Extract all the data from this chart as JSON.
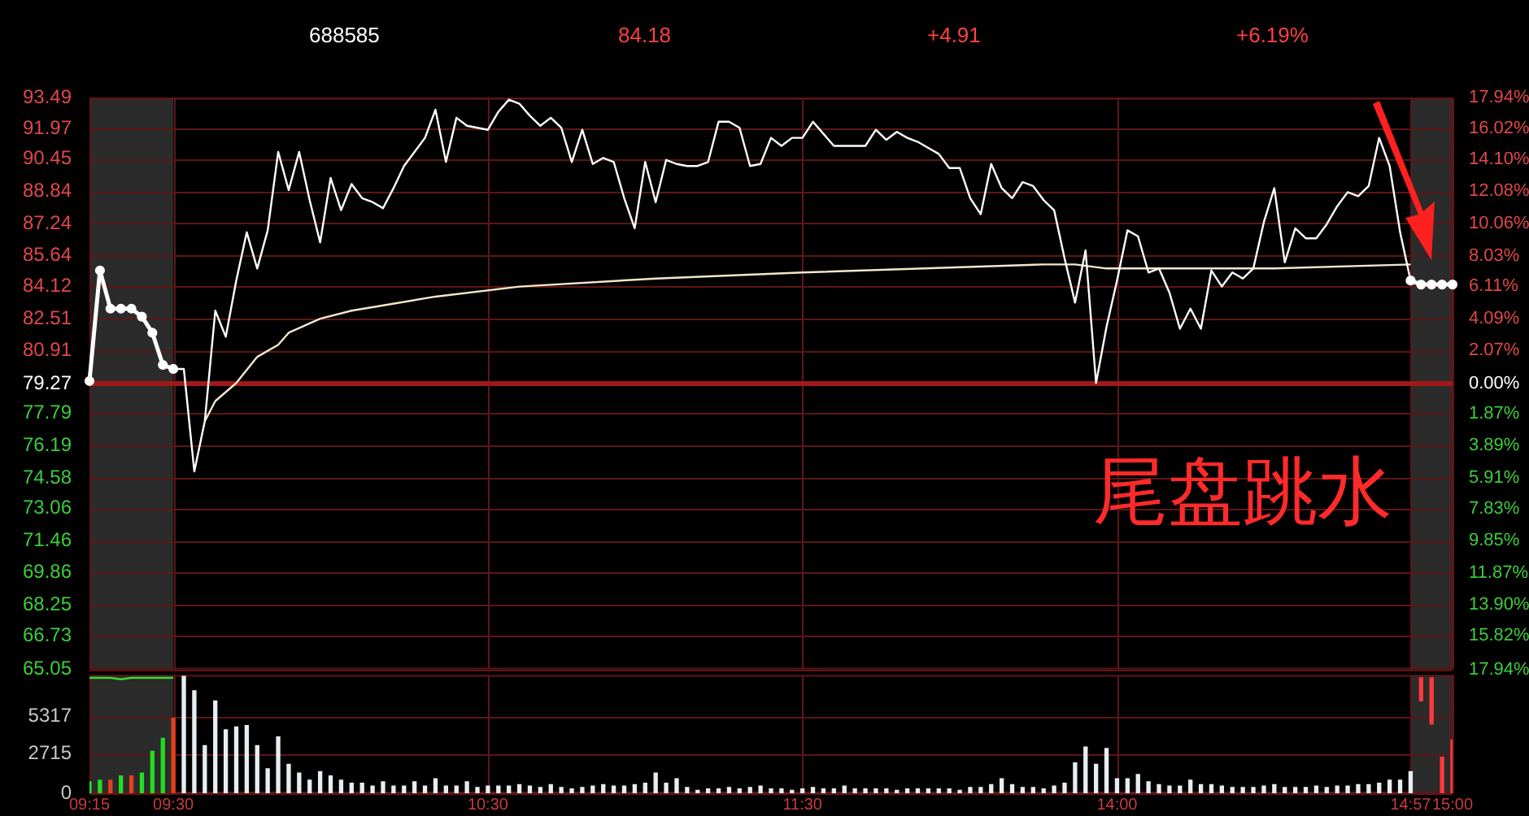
{
  "chart_data": [
    {
      "type": "line",
      "title": "688585",
      "annotations": [
        "84.18",
        "+4.91",
        "+6.19%",
        "尾盘跳水"
      ],
      "categories": [
        "09:15",
        null,
        null,
        null,
        null,
        null,
        null,
        null,
        "09:30",
        null,
        null,
        null,
        null,
        null,
        null,
        null,
        null,
        null,
        null,
        null,
        null,
        null,
        null,
        null,
        null,
        null,
        null,
        null,
        null,
        null,
        null,
        null,
        null,
        null,
        null,
        null,
        null,
        null,
        "10:30",
        null,
        null,
        null,
        null,
        null,
        null,
        null,
        null,
        null,
        null,
        null,
        null,
        null,
        null,
        null,
        null,
        null,
        null,
        null,
        null,
        null,
        null,
        null,
        null,
        null,
        null,
        null,
        null,
        null,
        "11:30",
        null,
        null,
        null,
        null,
        null,
        null,
        null,
        null,
        null,
        null,
        null,
        null,
        null,
        null,
        null,
        null,
        null,
        null,
        null,
        null,
        null,
        null,
        null,
        null,
        null,
        null,
        null,
        null,
        null,
        "14:00",
        null,
        null,
        null,
        null,
        null,
        null,
        null,
        null,
        null,
        null,
        null,
        null,
        null,
        null,
        null,
        null,
        null,
        null,
        null,
        null,
        null,
        null,
        null,
        null,
        null,
        null,
        null,
        "14:57",
        null,
        null,
        null,
        "15:00"
      ],
      "tick_labels": "y",
      "ylim": [
        65.05,
        93.49
      ],
      "yticks": [
        65.05,
        66.73,
        68.25,
        69.86,
        71.46,
        73.06,
        74.58,
        76.19,
        77.79,
        79.27,
        80.91,
        82.51,
        84.12,
        85.64,
        87.24,
        88.84,
        90.45,
        91.97,
        93.49
      ],
      "y2lim": [
        -17.94,
        17.94
      ],
      "y2ticks": [
        {
          "value": -17.94,
          "label": "17.94%"
        },
        {
          "value": -15.82,
          "label": "15.82%"
        },
        {
          "value": -13.9,
          "label": "13.90%"
        },
        {
          "value": -11.87,
          "label": "11.87%"
        },
        {
          "value": -9.85,
          "label": "9.85%"
        },
        {
          "value": -7.83,
          "label": "7.83%"
        },
        {
          "value": -5.91,
          "label": "5.91%"
        },
        {
          "value": -3.89,
          "label": "3.89%"
        },
        {
          "value": -1.87,
          "label": "1.87%"
        },
        {
          "value": 0,
          "label": "0.00%"
        },
        {
          "value": 2.07,
          "label": "2.07%"
        },
        {
          "value": 4.09,
          "label": "4.09%"
        },
        {
          "value": 6.11,
          "label": "6.11%"
        },
        {
          "value": 8.03,
          "label": "8.03%"
        },
        {
          "value": 10.06,
          "label": "10.06%"
        },
        {
          "value": 12.08,
          "label": "12.08%"
        },
        {
          "value": 14.1,
          "label": "14.10%"
        },
        {
          "value": 16.02,
          "label": "16.02%"
        },
        {
          "value": 17.94,
          "label": "17.94%"
        }
      ],
      "grid": true,
      "ref_lines": [
        {
          "axis": "y",
          "value": 79.27,
          "color": "#a01818"
        }
      ],
      "bands": [
        {
          "axis": "x",
          "from": "09:15",
          "to": "09:30",
          "color": "#2b2b2b"
        },
        {
          "axis": "x",
          "from": "14:57",
          "to": "15:00",
          "color": "#2b2b2b"
        }
      ],
      "series": [
        {
          "color": "#ffffff",
          "marker": "circle",
          "values": [
            79.4,
            84.9,
            83.0,
            83.0,
            83.0,
            82.6,
            81.8,
            80.2,
            80.0,
            null,
            null,
            null,
            null,
            null,
            null,
            null,
            null,
            null,
            null,
            null,
            null,
            null,
            null,
            null,
            null,
            null,
            null,
            null,
            null,
            null,
            null,
            null,
            null,
            null,
            null,
            null,
            null,
            null,
            null,
            null,
            null,
            null,
            null,
            null,
            null,
            null,
            null,
            null,
            null,
            null,
            null,
            null,
            null,
            null,
            null,
            null,
            null,
            null,
            null,
            null,
            null,
            null,
            null,
            null,
            null,
            null,
            null,
            null,
            null,
            null,
            null,
            null,
            null,
            null,
            null,
            null,
            null,
            null,
            null,
            null,
            null,
            null,
            null,
            null,
            null,
            null,
            null,
            null,
            null,
            null,
            null,
            null,
            null,
            null,
            null,
            null,
            null,
            null,
            null,
            null,
            null,
            null,
            null,
            null,
            null,
            null,
            null,
            null,
            null,
            null,
            null,
            null,
            null,
            null,
            null,
            null,
            null,
            null,
            null,
            null,
            null,
            null,
            null,
            null,
            null,
            null,
            null,
            null,
            null,
            null,
            null
          ]
        },
        {
          "color": "#ffffff",
          "marker": "none",
          "values": [
            null,
            null,
            null,
            null,
            null,
            null,
            null,
            null,
            80.0,
            80.0,
            74.9,
            77.4,
            82.9,
            81.6,
            84.4,
            86.8,
            85.0,
            86.9,
            90.8,
            88.9,
            90.8,
            88.4,
            86.3,
            89.5,
            87.9,
            89.2,
            88.5,
            88.3,
            88.0,
            89.0,
            90.1,
            90.8,
            91.5,
            92.9,
            90.3,
            92.5,
            92.1,
            92.0,
            91.9,
            92.8,
            93.4,
            93.2,
            92.6,
            92.1,
            92.5,
            92.0,
            90.3,
            91.9,
            90.2,
            90.5,
            90.3,
            88.5,
            87.0,
            90.3,
            88.3,
            90.4,
            90.2,
            90.1,
            90.1,
            90.3,
            92.3,
            92.3,
            92.0,
            90.1,
            90.2,
            91.5,
            91.1,
            91.5,
            91.5,
            92.3,
            91.7,
            91.1,
            91.1,
            91.1,
            91.1,
            91.9,
            91.4,
            91.8,
            91.5,
            91.3,
            91.0,
            90.7,
            90.0,
            90.0,
            88.5,
            87.7,
            90.2,
            89.0,
            88.5,
            89.3,
            89.1,
            88.4,
            87.9,
            85.5,
            83.3,
            85.9,
            79.3,
            82.1,
            84.4,
            86.9,
            86.6,
            84.8,
            85.0,
            83.8,
            82.0,
            83.0,
            82.0,
            84.9,
            84.1,
            84.8,
            84.5,
            85.0,
            87.3,
            89.0,
            85.3,
            87.0,
            86.5,
            86.5,
            87.2,
            88.1,
            88.8,
            88.6,
            89.1,
            91.5,
            90.1,
            86.8,
            84.4,
            null,
            null,
            null,
            null
          ]
        },
        {
          "color": "#ffffff",
          "marker": "circle",
          "values": [
            null,
            null,
            null,
            null,
            null,
            null,
            null,
            null,
            null,
            null,
            null,
            null,
            null,
            null,
            null,
            null,
            null,
            null,
            null,
            null,
            null,
            null,
            null,
            null,
            null,
            null,
            null,
            null,
            null,
            null,
            null,
            null,
            null,
            null,
            null,
            null,
            null,
            null,
            null,
            null,
            null,
            null,
            null,
            null,
            null,
            null,
            null,
            null,
            null,
            null,
            null,
            null,
            null,
            null,
            null,
            null,
            null,
            null,
            null,
            null,
            null,
            null,
            null,
            null,
            null,
            null,
            null,
            null,
            null,
            null,
            null,
            null,
            null,
            null,
            null,
            null,
            null,
            null,
            null,
            null,
            null,
            null,
            null,
            null,
            null,
            null,
            null,
            null,
            null,
            null,
            null,
            null,
            null,
            null,
            null,
            null,
            null,
            null,
            null,
            null,
            null,
            null,
            null,
            null,
            null,
            null,
            null,
            null,
            null,
            null,
            null,
            null,
            null,
            null,
            null,
            null,
            null,
            null,
            null,
            null,
            null,
            null,
            null,
            null,
            null,
            null,
            84.4,
            84.2,
            84.2,
            84.2,
            84.2
          ]
        },
        {
          "color": "#f2e8c9",
          "marker": "none",
          "values": [
            null,
            null,
            null,
            null,
            null,
            null,
            null,
            null,
            null,
            null,
            null,
            77.4,
            78.4,
            null,
            79.3,
            null,
            80.6,
            null,
            81.2,
            81.8,
            null,
            null,
            82.5,
            null,
            null,
            82.9,
            null,
            null,
            null,
            null,
            null,
            null,
            null,
            83.6,
            null,
            null,
            null,
            null,
            null,
            null,
            null,
            84.1,
            null,
            null,
            null,
            null,
            null,
            null,
            null,
            null,
            null,
            null,
            null,
            null,
            84.5,
            null,
            null,
            null,
            null,
            null,
            null,
            null,
            null,
            null,
            null,
            null,
            null,
            null,
            84.8,
            null,
            null,
            null,
            null,
            null,
            null,
            null,
            null,
            null,
            null,
            null,
            null,
            null,
            null,
            null,
            null,
            null,
            null,
            null,
            null,
            null,
            null,
            85.2,
            null,
            null,
            85.2,
            null,
            null,
            85.0,
            null,
            null,
            null,
            null,
            null,
            null,
            null,
            null,
            85.0,
            null,
            null,
            null,
            null,
            null,
            null,
            85.0,
            null,
            null,
            null,
            null,
            null,
            null,
            null,
            null,
            null,
            null,
            null,
            null,
            85.2,
            null,
            null,
            null,
            null
          ]
        }
      ]
    },
    {
      "type": "bar",
      "categories": [
        "09:15",
        null,
        null,
        null,
        null,
        null,
        null,
        null,
        "09:30",
        null,
        null,
        null,
        null,
        null,
        null,
        null,
        null,
        null,
        null,
        null,
        null,
        null,
        null,
        null,
        null,
        null,
        null,
        null,
        null,
        null,
        null,
        null,
        null,
        null,
        null,
        null,
        null,
        null,
        "10:30",
        null,
        null,
        null,
        null,
        null,
        null,
        null,
        null,
        null,
        null,
        null,
        null,
        null,
        null,
        null,
        null,
        null,
        null,
        null,
        null,
        null,
        null,
        null,
        null,
        null,
        null,
        null,
        null,
        null,
        "11:30",
        null,
        null,
        null,
        null,
        null,
        null,
        null,
        null,
        null,
        null,
        null,
        null,
        null,
        null,
        null,
        null,
        null,
        null,
        null,
        null,
        null,
        null,
        null,
        null,
        null,
        null,
        null,
        null,
        null,
        "14:00",
        null,
        null,
        null,
        null,
        null,
        null,
        null,
        null,
        null,
        null,
        null,
        null,
        null,
        null,
        null,
        null,
        null,
        null,
        null,
        null,
        null,
        null,
        null,
        null,
        null,
        null,
        null,
        "14:57",
        null,
        null,
        null,
        "15:00"
      ],
      "ylim": [
        0,
        8200
      ],
      "yticks": [
        0,
        2715,
        5317
      ],
      "grid": true,
      "bands": [
        {
          "axis": "x",
          "from": "09:15",
          "to": "09:30",
          "color": "#2b2b2b"
        },
        {
          "axis": "x",
          "from": "14:57",
          "to": "15:00",
          "color": "#2b2b2b"
        }
      ],
      "series": [
        {
          "color": "#22dd22",
          "values": [
            800,
            900,
            null,
            1200,
            null,
            1400,
            2900,
            3800,
            null,
            null,
            null,
            null,
            null,
            null,
            null,
            null,
            null,
            null,
            null,
            null,
            null,
            null,
            null,
            null,
            null,
            null,
            null,
            null,
            null,
            null,
            null,
            null,
            null,
            null,
            null,
            null,
            null,
            null,
            null,
            null,
            null,
            null,
            null,
            null,
            null,
            null,
            null,
            null,
            null,
            null,
            null,
            null,
            null,
            null,
            null,
            null,
            null,
            null,
            null,
            null,
            null,
            null,
            null,
            null,
            null,
            null,
            null,
            null,
            null,
            null,
            null,
            null,
            null,
            null,
            null,
            null,
            null,
            null,
            null,
            null,
            null,
            null,
            null,
            null,
            null,
            null,
            null,
            null,
            null,
            null,
            null,
            null,
            null,
            null,
            null,
            null,
            null,
            null,
            null,
            null,
            null,
            null,
            null,
            null,
            null,
            null,
            null,
            null,
            null,
            null,
            null,
            null,
            null,
            null,
            null,
            null,
            null,
            null,
            null,
            null,
            null,
            null,
            null,
            null,
            null,
            null,
            null,
            null,
            null,
            null,
            null
          ]
        },
        {
          "color": "#e04020",
          "values": [
            null,
            null,
            900,
            null,
            1200,
            null,
            null,
            null,
            5200,
            null,
            null,
            null,
            null,
            null,
            null,
            null,
            null,
            null,
            null,
            null,
            null,
            null,
            null,
            null,
            null,
            null,
            null,
            null,
            null,
            null,
            null,
            null,
            null,
            null,
            null,
            null,
            null,
            null,
            null,
            null,
            null,
            null,
            null,
            null,
            null,
            null,
            null,
            null,
            null,
            null,
            null,
            null,
            null,
            null,
            null,
            null,
            null,
            null,
            null,
            null,
            null,
            null,
            null,
            null,
            null,
            null,
            null,
            null,
            null,
            null,
            null,
            null,
            null,
            null,
            null,
            null,
            null,
            null,
            null,
            null,
            null,
            null,
            null,
            null,
            null,
            null,
            null,
            null,
            null,
            null,
            null,
            null,
            null,
            null,
            null,
            null,
            null,
            null,
            null,
            null,
            null,
            null,
            null,
            null,
            null,
            null,
            null,
            null,
            null,
            null,
            null,
            null,
            null,
            null,
            null,
            null,
            null,
            null,
            null,
            null,
            null,
            null,
            null,
            null,
            null,
            null,
            null,
            null,
            null,
            null,
            null
          ]
        },
        {
          "type": "line",
          "color": "#33dd33",
          "marker": "none",
          "values": [
            8000,
            8000,
            8000,
            7900,
            8000,
            8000,
            8000,
            8000,
            8000,
            null,
            null,
            null,
            null,
            null,
            null,
            null,
            null,
            null,
            null,
            null,
            null,
            null,
            null,
            null,
            null,
            null,
            null,
            null,
            null,
            null,
            null,
            null,
            null,
            null,
            null,
            null,
            null,
            null,
            null,
            null,
            null,
            null,
            null,
            null,
            null,
            null,
            null,
            null,
            null,
            null,
            null,
            null,
            null,
            null,
            null,
            null,
            null,
            null,
            null,
            null,
            null,
            null,
            null,
            null,
            null,
            null,
            null,
            null,
            null,
            null,
            null,
            null,
            null,
            null,
            null,
            null,
            null,
            null,
            null,
            null,
            null,
            null,
            null,
            null,
            null,
            null,
            null,
            null,
            null,
            null,
            null,
            null,
            null,
            null,
            null,
            null,
            null,
            null,
            null,
            null,
            null,
            null,
            null,
            null,
            null,
            null,
            null,
            null,
            null,
            null,
            null,
            null,
            null,
            null,
            null,
            null,
            null,
            null,
            null,
            null,
            null,
            null,
            null,
            null,
            null,
            null,
            null,
            null,
            null,
            null,
            null
          ]
        },
        {
          "color": "#e6eef2",
          "values": [
            null,
            null,
            null,
            null,
            null,
            null,
            null,
            null,
            null,
            8100,
            7100,
            3300,
            6400,
            4400,
            4600,
            4700,
            3300,
            1700,
            3900,
            2000,
            1400,
            900,
            1500,
            1200,
            900,
            700,
            700,
            500,
            800,
            500,
            500,
            800,
            500,
            1000,
            500,
            500,
            800,
            400,
            500,
            500,
            500,
            600,
            500,
            400,
            600,
            400,
            300,
            400,
            500,
            600,
            500,
            500,
            600,
            700,
            1400,
            700,
            1000,
            400,
            200,
            300,
            300,
            400,
            300,
            400,
            500,
            300,
            300,
            200,
            300,
            400,
            300,
            300,
            500,
            300,
            300,
            300,
            300,
            200,
            300,
            300,
            300,
            300,
            300,
            200,
            400,
            400,
            600,
            1000,
            600,
            400,
            400,
            300,
            500,
            700,
            2100,
            3200,
            2000,
            3100,
            1000,
            1000,
            1300,
            800,
            600,
            500,
            500,
            900,
            600,
            600,
            500,
            400,
            400,
            400,
            500,
            600,
            400,
            400,
            400,
            500,
            400,
            500,
            500,
            600,
            600,
            700,
            900,
            900,
            1500,
            null,
            null,
            null,
            null
          ]
        },
        {
          "color": "#ff3a3a",
          "values": [
            null,
            null,
            null,
            null,
            null,
            null,
            null,
            null,
            null,
            null,
            null,
            null,
            null,
            null,
            null,
            null,
            null,
            null,
            null,
            null,
            null,
            null,
            null,
            null,
            null,
            null,
            null,
            null,
            null,
            null,
            null,
            null,
            null,
            null,
            null,
            null,
            null,
            null,
            null,
            null,
            null,
            null,
            null,
            null,
            null,
            null,
            null,
            null,
            null,
            null,
            null,
            null,
            null,
            null,
            null,
            null,
            null,
            null,
            null,
            null,
            null,
            null,
            null,
            null,
            null,
            null,
            null,
            null,
            null,
            null,
            null,
            null,
            null,
            null,
            null,
            null,
            null,
            null,
            null,
            null,
            null,
            null,
            null,
            null,
            null,
            null,
            null,
            null,
            null,
            null,
            null,
            null,
            null,
            null,
            null,
            null,
            null,
            null,
            null,
            null,
            null,
            null,
            null,
            null,
            null,
            null,
            null,
            null,
            null,
            null,
            null,
            null,
            null,
            null,
            null,
            null,
            null,
            null,
            null,
            null,
            null,
            null,
            null,
            null,
            null,
            null,
            null,
            null,
            null,
            2500,
            3700
          ]
        },
        {
          "color": "#ff3a3a",
          "base": [
            null,
            null,
            null,
            null,
            null,
            null,
            null,
            null,
            null,
            null,
            null,
            null,
            null,
            null,
            null,
            null,
            null,
            null,
            null,
            null,
            null,
            null,
            null,
            null,
            null,
            null,
            null,
            null,
            null,
            null,
            null,
            null,
            null,
            null,
            null,
            null,
            null,
            null,
            null,
            null,
            null,
            null,
            null,
            null,
            null,
            null,
            null,
            null,
            null,
            null,
            null,
            null,
            null,
            null,
            null,
            null,
            null,
            null,
            null,
            null,
            null,
            null,
            null,
            null,
            null,
            null,
            null,
            null,
            null,
            null,
            null,
            null,
            null,
            null,
            null,
            null,
            null,
            null,
            null,
            null,
            null,
            null,
            null,
            null,
            null,
            null,
            null,
            null,
            null,
            null,
            null,
            null,
            null,
            null,
            null,
            null,
            null,
            null,
            null,
            null,
            null,
            null,
            null,
            null,
            null,
            null,
            null,
            null,
            null,
            null,
            null,
            null,
            null,
            null,
            null,
            null,
            null,
            null,
            null,
            null,
            null,
            null,
            null,
            null,
            null,
            null,
            null,
            6400,
            4800,
            null,
            null
          ],
          "values": [
            null,
            null,
            null,
            null,
            null,
            null,
            null,
            null,
            null,
            null,
            null,
            null,
            null,
            null,
            null,
            null,
            null,
            null,
            null,
            null,
            null,
            null,
            null,
            null,
            null,
            null,
            null,
            null,
            null,
            null,
            null,
            null,
            null,
            null,
            null,
            null,
            null,
            null,
            null,
            null,
            null,
            null,
            null,
            null,
            null,
            null,
            null,
            null,
            null,
            null,
            null,
            null,
            null,
            null,
            null,
            null,
            null,
            null,
            null,
            null,
            null,
            null,
            null,
            null,
            null,
            null,
            null,
            null,
            null,
            null,
            null,
            null,
            null,
            null,
            null,
            null,
            null,
            null,
            null,
            null,
            null,
            null,
            null,
            null,
            null,
            null,
            null,
            null,
            null,
            null,
            null,
            null,
            null,
            null,
            null,
            null,
            null,
            null,
            null,
            null,
            null,
            null,
            null,
            null,
            null,
            null,
            null,
            null,
            null,
            null,
            null,
            null,
            null,
            null,
            null,
            null,
            null,
            null,
            null,
            null,
            null,
            null,
            null,
            null,
            null,
            null,
            null,
            1600,
            3200,
            null,
            null
          ]
        }
      ]
    }
  ]
}
